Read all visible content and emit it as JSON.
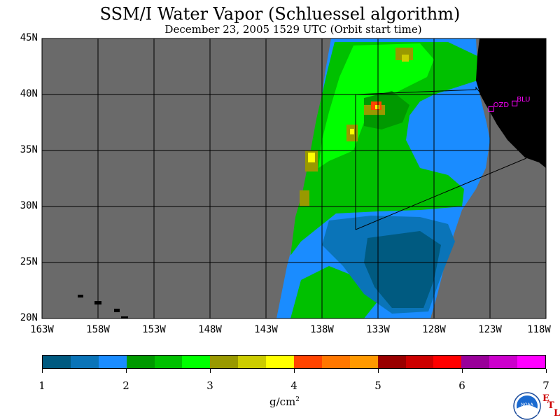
{
  "title": "SSM/I Water Vapor (Schluessel algorithm)",
  "subtitle": "December 23, 2005  1529 UTC  (Orbit start time)",
  "map": {
    "lon_range": [
      -163,
      -118
    ],
    "lat_range": [
      20,
      45
    ],
    "lat_labels": [
      "45N",
      "40N",
      "35N",
      "30N",
      "25N",
      "20N"
    ],
    "lon_labels": [
      "163W",
      "158W",
      "153W",
      "148W",
      "143W",
      "138W",
      "133W",
      "128W",
      "123W",
      "118W"
    ],
    "stations": [
      {
        "label": "OZD",
        "lon": -122.9,
        "lat": 38.7
      },
      {
        "label": "BLU",
        "lon": -120.8,
        "lat": 39.2
      }
    ],
    "colors": {
      "no_data": "#6a6a6a",
      "land": "#000000",
      "station": "#ff00ff",
      "grid": "#000000"
    }
  },
  "colorbar": {
    "ticks": [
      "1",
      "2",
      "3",
      "4",
      "5",
      "6",
      "7"
    ],
    "units_main": "g/cm",
    "units_sup": "2",
    "colors": [
      "#005a80",
      "#0a74b8",
      "#1a8cff",
      "#009900",
      "#00c000",
      "#00ff00",
      "#999900",
      "#cccc00",
      "#ffff00",
      "#ff4400",
      "#ff7700",
      "#ff9900",
      "#990000",
      "#cc0000",
      "#ff0000",
      "#990099",
      "#cc00cc",
      "#ff00ff"
    ]
  },
  "logo": {
    "text": "NOAA",
    "side_letters": [
      "E",
      "T",
      "L"
    ]
  }
}
